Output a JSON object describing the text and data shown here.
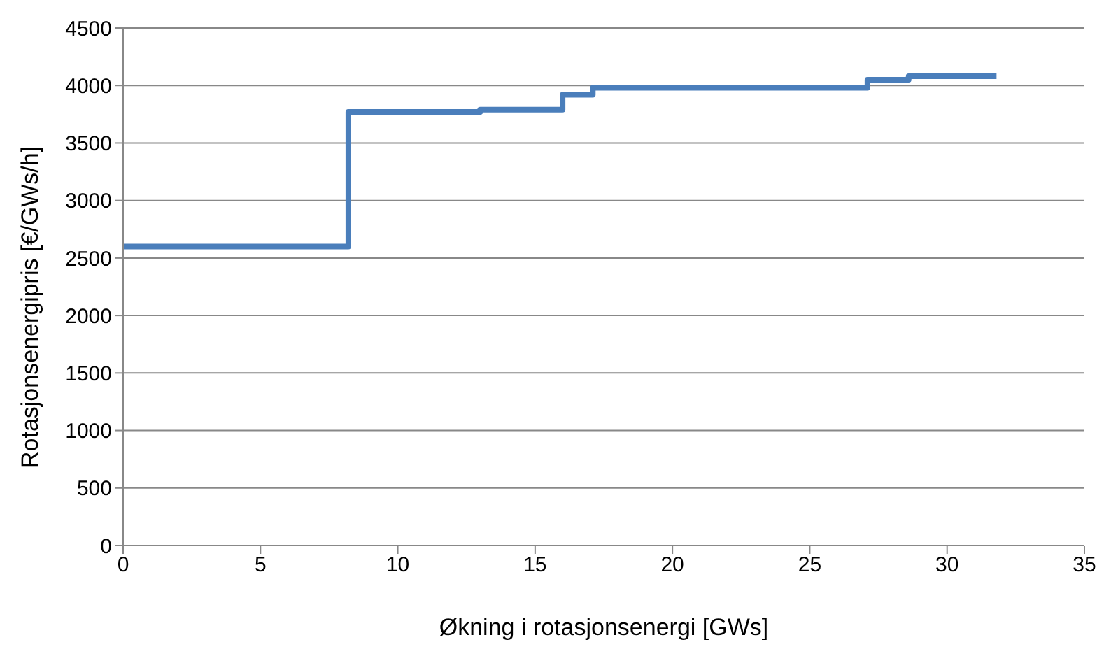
{
  "chart_data": {
    "type": "step",
    "xlabel": "Økning i rotasjonsenergi [GWs]",
    "ylabel": "Rotasjonsenergipris  [€/GWs/h]",
    "x": [
      0,
      8.2,
      13,
      16,
      17.1,
      27.1,
      28.6,
      31.8
    ],
    "series": [
      {
        "color": "#4a7ebb",
        "values": [
          2600,
          3770,
          3790,
          3920,
          3980,
          4050,
          4080,
          4080
        ]
      }
    ],
    "xlim": [
      0,
      35
    ],
    "xticks": [
      0,
      5,
      10,
      15,
      20,
      25,
      30,
      35
    ],
    "ylim": [
      0,
      4500
    ],
    "yticks": [
      0,
      500,
      1000,
      1500,
      2000,
      2500,
      3000,
      3500,
      4000,
      4500
    ],
    "grid": "y",
    "legend": false,
    "marker": "none",
    "line_style": "solid"
  }
}
